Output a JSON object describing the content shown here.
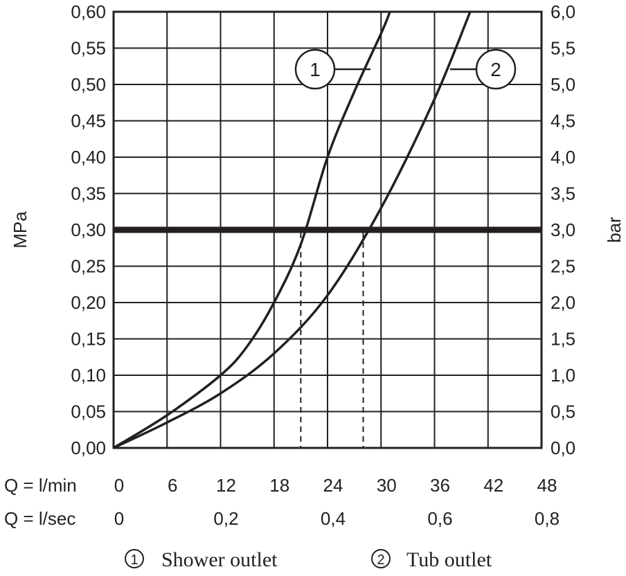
{
  "chart_data": {
    "type": "line",
    "ylabel_left": "MPa",
    "ylabel_right": "bar",
    "x_row_labels": [
      "Q = l/min",
      "Q = l/sec"
    ],
    "x_ticks_lmin": [
      "0",
      "6",
      "12",
      "18",
      "24",
      "30",
      "36",
      "42",
      "48"
    ],
    "x_ticks_lsec": [
      "0",
      "0,2",
      "0,4",
      "0,6",
      "0,8"
    ],
    "y_ticks_left": [
      "0,00",
      "0,05",
      "0,10",
      "0,15",
      "0,20",
      "0,25",
      "0,30",
      "0,35",
      "0,40",
      "0,45",
      "0,50",
      "0,55",
      "0,60"
    ],
    "y_ticks_right": [
      "0,0",
      "0,5",
      "1,0",
      "1,5",
      "2,0",
      "2,5",
      "3,0",
      "3,5",
      "4,0",
      "4,5",
      "5,0",
      "5,5",
      "6,0"
    ],
    "xlim": [
      0,
      48
    ],
    "ylim": [
      0,
      0.6
    ],
    "grid": true,
    "reference_line": {
      "y": 0.3
    },
    "series": [
      {
        "name": "1",
        "x": [
          0,
          6,
          12,
          15,
          18,
          21,
          24,
          27,
          30,
          31
        ],
        "y": [
          0,
          0.045,
          0.1,
          0.14,
          0.2,
          0.28,
          0.4,
          0.49,
          0.57,
          0.6
        ],
        "intersection_x": 21
      },
      {
        "name": "2",
        "x": [
          0,
          6,
          12,
          18,
          24,
          30,
          36,
          40
        ],
        "y": [
          0,
          0.035,
          0.075,
          0.13,
          0.21,
          0.33,
          0.48,
          0.6
        ],
        "intersection_x": 28
      }
    ],
    "legend": [
      {
        "symbol": "1",
        "label": "Shower outlet"
      },
      {
        "symbol": "2",
        "label": "Tub outlet"
      }
    ],
    "legend_placement": "bottom",
    "colors": {
      "line": "#231f20",
      "background": "#ffffff"
    }
  }
}
